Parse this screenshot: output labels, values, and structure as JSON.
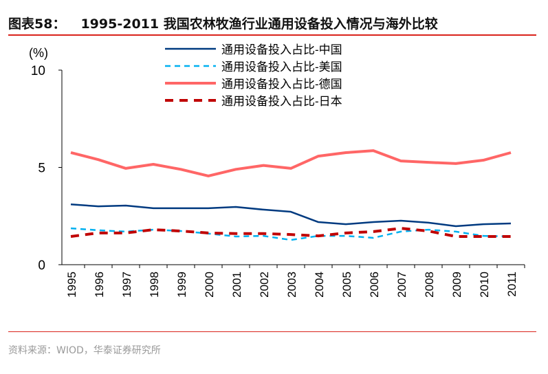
{
  "header": {
    "figure_label": "图表58：",
    "title": "1995-2011 我国农林牧渔行业通用设备投入情况与海外比较"
  },
  "footer": {
    "source": "资料来源：WIOD，华泰证券研究所"
  },
  "chart_data": {
    "type": "line",
    "title": "1995-2011 我国农林牧渔行业通用设备投入情况与海外比较",
    "ylabel": "(%)",
    "xlabel": "",
    "ylim": [
      0,
      10
    ],
    "yticks": [
      0,
      5,
      10
    ],
    "grid": false,
    "legend": "top-center",
    "categories": [
      "1995",
      "1996",
      "1997",
      "1998",
      "1999",
      "2000",
      "2001",
      "2002",
      "2003",
      "2004",
      "2005",
      "2006",
      "2007",
      "2008",
      "2009",
      "2010",
      "2011"
    ],
    "series": [
      {
        "name": "通用设备投入占比-中国",
        "color": "#003a80",
        "style": "solid",
        "values": [
          3.1,
          3.0,
          3.04,
          2.9,
          2.9,
          2.9,
          2.97,
          2.83,
          2.72,
          2.19,
          2.08,
          2.19,
          2.26,
          2.16,
          1.98,
          2.08,
          2.12
        ]
      },
      {
        "name": "通用设备投入占比-美国",
        "color": "#00b0f0",
        "style": "dashed",
        "values": [
          1.87,
          1.77,
          1.7,
          1.8,
          1.73,
          1.6,
          1.45,
          1.48,
          1.27,
          1.48,
          1.48,
          1.38,
          1.7,
          1.8,
          1.7,
          1.48,
          1.45
        ]
      },
      {
        "name": "通用设备投入占比-德国",
        "color": "#ff6666",
        "style": "solid-thick",
        "values": [
          5.76,
          5.4,
          4.95,
          5.16,
          4.9,
          4.56,
          4.9,
          5.1,
          4.95,
          5.58,
          5.76,
          5.86,
          5.33,
          5.26,
          5.2,
          5.37,
          5.76
        ]
      },
      {
        "name": "通用设备投入占比-日本",
        "color": "#c00000",
        "style": "dashed-thick",
        "values": [
          1.45,
          1.63,
          1.63,
          1.8,
          1.73,
          1.63,
          1.6,
          1.6,
          1.55,
          1.48,
          1.63,
          1.7,
          1.87,
          1.73,
          1.45,
          1.45,
          1.45
        ]
      }
    ]
  }
}
